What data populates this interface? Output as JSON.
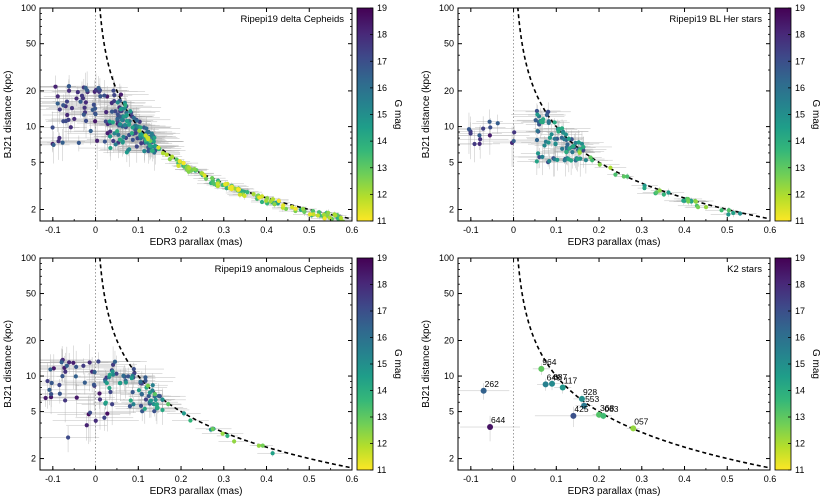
{
  "colorbar": {
    "label": "G mag",
    "range": [
      11,
      19
    ],
    "ticks": [
      11,
      12,
      13,
      14,
      15,
      16,
      17,
      18,
      19
    ],
    "colormap": [
      "#fde725",
      "#b5de2b",
      "#6ece58",
      "#35b779",
      "#1f9e89",
      "#26828e",
      "#31688e",
      "#3e4989",
      "#482878",
      "#440154"
    ]
  },
  "chart_data": [
    {
      "type": "scatter",
      "title": "Ripepi19 delta Cepheids",
      "xlabel": "EDR3 parallax (mas)",
      "ylabel": "BJ21 distance (kpc)",
      "xlim": [
        -0.13,
        0.6
      ],
      "ylim": [
        1.6,
        100
      ],
      "yscale": "log",
      "x_ticks": [
        -0.1,
        0,
        0.1,
        0.2,
        0.3,
        0.4,
        0.5,
        0.6
      ],
      "x_tick_labels": [
        "-0.1",
        "0",
        "0.1",
        "0.2",
        "0.3",
        "0.4",
        "0.5",
        "0.6"
      ],
      "y_ticks": [
        2,
        5,
        10,
        20,
        50,
        100
      ],
      "y_tick_labels": [
        "2",
        "5",
        "10",
        "20",
        "50",
        "100"
      ],
      "n_points": 320,
      "seed": 11,
      "mix": [
        {
          "n": 70,
          "x0": -0.11,
          "x1": 0.06,
          "d0": 7,
          "d1": 22,
          "mag": [
            16.5,
            18.5
          ],
          "err": [
            0.03,
            0.11
          ],
          "derr": [
            0.1,
            0.45
          ]
        },
        {
          "n": 120,
          "x0": 0.03,
          "x1": 0.14,
          "d0": 6,
          "d1": 16,
          "mag": [
            14,
            18
          ],
          "err": [
            0.02,
            0.08
          ],
          "derr": [
            0.05,
            0.3
          ]
        },
        {
          "n": 130,
          "x0": 0.1,
          "x1": 0.58,
          "d0": 0,
          "d1": 0,
          "mag": [
            11,
            14.5
          ],
          "err": [
            0.01,
            0.04
          ],
          "derr": [
            0.03,
            0.08
          ]
        }
      ],
      "curve": "d = 1/parallax",
      "labels": []
    },
    {
      "type": "scatter",
      "title": "Ripepi19 BL Her stars",
      "xlabel": "EDR3 parallax (mas)",
      "ylabel": "BJ21 distance (kpc)",
      "xlim": [
        -0.13,
        0.6
      ],
      "ylim": [
        1.6,
        100
      ],
      "yscale": "log",
      "x_ticks": [
        -0.1,
        0,
        0.1,
        0.2,
        0.3,
        0.4,
        0.5,
        0.6
      ],
      "x_tick_labels": [
        "-0.1",
        "0",
        "0.1",
        "0.2",
        "0.3",
        "0.4",
        "0.5",
        "0.6"
      ],
      "y_ticks": [
        2,
        5,
        10,
        20,
        50,
        100
      ],
      "y_tick_labels": [
        "2",
        "5",
        "10",
        "20",
        "50",
        "100"
      ],
      "n_points": 130,
      "seed": 23,
      "mix": [
        {
          "n": 15,
          "x0": -0.11,
          "x1": 0.02,
          "d0": 6,
          "d1": 11,
          "mag": [
            16.5,
            18.8
          ],
          "err": [
            0.03,
            0.1
          ],
          "derr": [
            0.1,
            0.4
          ]
        },
        {
          "n": 80,
          "x0": 0.05,
          "x1": 0.17,
          "d0": 5,
          "d1": 14,
          "mag": [
            14,
            17.5
          ],
          "err": [
            0.02,
            0.07
          ],
          "derr": [
            0.05,
            0.3
          ]
        },
        {
          "n": 35,
          "x0": 0.14,
          "x1": 0.55,
          "d0": 0,
          "d1": 0,
          "mag": [
            12,
            15
          ],
          "err": [
            0.01,
            0.05
          ],
          "derr": [
            0.03,
            0.08
          ]
        }
      ],
      "curve": "d = 1/parallax",
      "labels": []
    },
    {
      "type": "scatter",
      "title": "Ripepi19 anomalous Cepheids",
      "xlabel": "EDR3 parallax (mas)",
      "ylabel": "BJ21 distance (kpc)",
      "xlim": [
        -0.13,
        0.6
      ],
      "ylim": [
        1.6,
        100
      ],
      "yscale": "log",
      "x_ticks": [
        -0.1,
        0,
        0.1,
        0.2,
        0.3,
        0.4,
        0.5,
        0.6
      ],
      "x_tick_labels": [
        "-0.1",
        "0",
        "0.1",
        "0.2",
        "0.3",
        "0.4",
        "0.5",
        "0.6"
      ],
      "y_ticks": [
        2,
        5,
        10,
        20,
        50,
        100
      ],
      "y_tick_labels": [
        "2",
        "5",
        "10",
        "20",
        "50",
        "100"
      ],
      "n_points": 120,
      "seed": 37,
      "mix": [
        {
          "n": 45,
          "x0": -0.12,
          "x1": 0.05,
          "d0": 3,
          "d1": 14,
          "mag": [
            16.5,
            18.8
          ],
          "err": [
            0.04,
            0.12
          ],
          "derr": [
            0.1,
            0.45
          ]
        },
        {
          "n": 60,
          "x0": 0.02,
          "x1": 0.16,
          "d0": 5,
          "d1": 12,
          "mag": [
            14,
            17.5
          ],
          "err": [
            0.02,
            0.08
          ],
          "derr": [
            0.05,
            0.3
          ]
        },
        {
          "n": 15,
          "x0": 0.12,
          "x1": 0.42,
          "d0": 0,
          "d1": 0,
          "mag": [
            12,
            15
          ],
          "err": [
            0.01,
            0.05
          ],
          "derr": [
            0.03,
            0.08
          ]
        }
      ],
      "curve": "d = 1/parallax",
      "labels": []
    },
    {
      "type": "scatter",
      "title": "K2 stars",
      "xlabel": "EDR3 parallax (mas)",
      "ylabel": "BJ21 distance (kpc)",
      "xlim": [
        -0.13,
        0.6
      ],
      "ylim": [
        1.6,
        100
      ],
      "yscale": "log",
      "x_ticks": [
        -0.1,
        0,
        0.1,
        0.2,
        0.3,
        0.4,
        0.5,
        0.6
      ],
      "x_tick_labels": [
        "-0.1",
        "0",
        "0.1",
        "0.2",
        "0.3",
        "0.4",
        "0.5",
        "0.6"
      ],
      "y_ticks": [
        2,
        5,
        10,
        20,
        50,
        100
      ],
      "y_tick_labels": [
        "2",
        "5",
        "10",
        "20",
        "50",
        "100"
      ],
      "curve": "d = 1/parallax",
      "points": [
        {
          "label": "964",
          "x": 0.065,
          "y": 11.5,
          "mag": 13.0,
          "xerr": 0.02,
          "yerr": 1.3
        },
        {
          "label": "640",
          "x": 0.075,
          "y": 8.5,
          "mag": 15.5,
          "xerr": 0.02,
          "yerr": 1.0
        },
        {
          "label": "687",
          "x": 0.09,
          "y": 8.6,
          "mag": 15.2,
          "xerr": 0.02,
          "yerr": 1.0
        },
        {
          "label": "117",
          "x": 0.115,
          "y": 8.0,
          "mag": 14.8,
          "xerr": 0.02,
          "yerr": 0.9
        },
        {
          "label": "928",
          "x": 0.16,
          "y": 6.4,
          "mag": 15.0,
          "xerr": 0.02,
          "yerr": 0.6
        },
        {
          "label": "553",
          "x": 0.165,
          "y": 5.6,
          "mag": 15.8,
          "xerr": 0.02,
          "yerr": 0.5
        },
        {
          "label": "262",
          "x": -0.07,
          "y": 7.5,
          "mag": 16.5,
          "xerr": 0.06,
          "yerr": 1.2
        },
        {
          "label": "425",
          "x": 0.14,
          "y": 4.6,
          "mag": 17.0,
          "xerr": 0.09,
          "yerr": 0.9
        },
        {
          "label": "368",
          "x": 0.2,
          "y": 4.7,
          "mag": 13.2,
          "xerr": 0.015,
          "yerr": 0.3
        },
        {
          "label": "063",
          "x": 0.21,
          "y": 4.6,
          "mag": 13.5,
          "xerr": 0.015,
          "yerr": 0.3
        },
        {
          "label": "057",
          "x": 0.28,
          "y": 3.6,
          "mag": 12.3,
          "xerr": 0.015,
          "yerr": 0.2
        },
        {
          "label": "644",
          "x": -0.055,
          "y": 3.7,
          "mag": 18.6,
          "xerr": 0.07,
          "yerr": 0.9
        }
      ]
    }
  ]
}
